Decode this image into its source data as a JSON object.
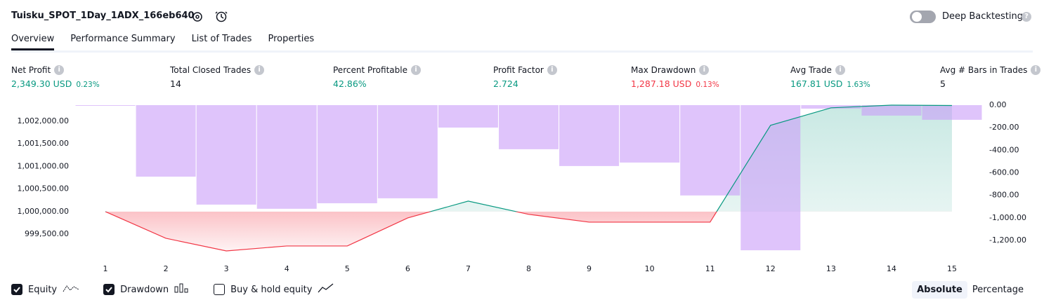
{
  "header": {
    "title": "Tuisku_SPOT_1Day_1ADX_166eb640",
    "toggle_label": "Deep Backtesting"
  },
  "tabs": {
    "items": [
      "Overview",
      "Performance Summary",
      "List of Trades",
      "Properties"
    ],
    "selected": 0
  },
  "metrics": [
    {
      "label": "Net Profit",
      "value": "2,349.30 USD",
      "percent": "0.23%",
      "color": "#089981"
    },
    {
      "label": "Total Closed Trades",
      "value": "14",
      "color": "#131722"
    },
    {
      "label": "Percent Profitable",
      "value": "42.86%",
      "color": "#089981"
    },
    {
      "label": "Profit Factor",
      "value": "2.724",
      "color": "#089981"
    },
    {
      "label": "Max Drawdown",
      "value": "1,287.18 USD",
      "percent": "0.13%",
      "color": "#f23645"
    },
    {
      "label": "Avg Trade",
      "value": "167.81 USD",
      "percent": "1.63%",
      "color": "#089981"
    },
    {
      "label": "Avg # Bars in Trades",
      "value": "5",
      "color": "#131722"
    }
  ],
  "chart_data": {
    "type": "line",
    "categories": [
      "1",
      "2",
      "3",
      "4",
      "5",
      "6",
      "7",
      "8",
      "9",
      "10",
      "11",
      "12",
      "13",
      "14",
      "15"
    ],
    "series": [
      {
        "name": "Equity",
        "type": "line",
        "color": "#089981",
        "negative_color": "#f23645",
        "checked": true,
        "values": [
          1000000,
          999410,
          999130,
          999240,
          999240,
          999860,
          1000233,
          999940,
          999767,
          999767,
          999767,
          1001910,
          1002298,
          1002357,
          1002349
        ]
      },
      {
        "name": "Drawdown",
        "type": "bar",
        "axis": "y2",
        "color": "#c99cf8",
        "checked": true,
        "values": [
          0,
          -634,
          -882,
          -919,
          -870,
          -826,
          -199,
          -391,
          -540,
          -509,
          -801,
          -1287.18,
          -31,
          -93,
          -130
        ]
      }
    ],
    "ylim": [
      998975,
      1002357
    ],
    "yticks": [
      {
        "value": 999500,
        "label": "999,500.00"
      },
      {
        "value": 1000000,
        "label": "1,000,000.00"
      },
      {
        "value": 1000500,
        "label": "1,000,500.00"
      },
      {
        "value": 1001000,
        "label": "1,001,000.00"
      },
      {
        "value": 1001500,
        "label": "1,001,500.00"
      },
      {
        "value": 1002000,
        "label": "1,002,000.00"
      }
    ],
    "y2lim": [
      -1355,
      0
    ],
    "y2ticks": [
      {
        "value": 0,
        "label": "0.00"
      },
      {
        "value": -200,
        "label": "-200.00"
      },
      {
        "value": -400,
        "label": "-400.00"
      },
      {
        "value": -600,
        "label": "-600.00"
      },
      {
        "value": -800,
        "label": "-800.00"
      },
      {
        "value": -1000,
        "label": "-1,000.00"
      },
      {
        "value": -1200,
        "label": "-1,200.00"
      }
    ]
  },
  "extra_toggle": {
    "label": "Buy & hold equity",
    "checked": false
  },
  "modes": {
    "items": [
      "Absolute",
      "Percentage"
    ],
    "selected": 0
  }
}
